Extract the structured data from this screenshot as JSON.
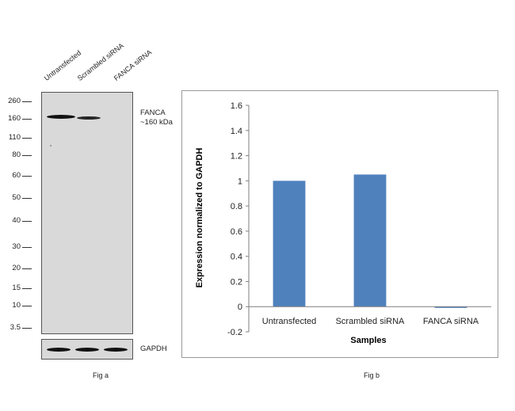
{
  "fig_a": {
    "lane_labels": [
      "Untransfected",
      "Scrambled siRNA",
      "FANCA siRNA"
    ],
    "mw_markers": [
      "260",
      "160",
      "110",
      "80",
      "60",
      "50",
      "40",
      "30",
      "20",
      "15",
      "10",
      "3.5"
    ],
    "target_label_line1": "FANCA",
    "target_label_line2": "~160 kDa",
    "loading_control_label": "GAPDH",
    "caption": "Fig a"
  },
  "fig_b": {
    "caption": "Fig b"
  },
  "chart_data": {
    "type": "bar",
    "categories": [
      "Untransfected",
      "Scrambled siRNA",
      "FANCA siRNA"
    ],
    "values": [
      1.0,
      1.05,
      -0.01
    ],
    "xlabel": "Samples",
    "ylabel": "Expression normalized to GAPDH",
    "ylim": [
      -0.2,
      1.6
    ],
    "yticks": [
      "1.6",
      "1.4",
      "1.2",
      "1",
      "0.8",
      "0.6",
      "0.4",
      "0.2",
      "0",
      "-0.2"
    ],
    "bar_color": "#4f81bd",
    "grid": false,
    "legend": "none"
  }
}
